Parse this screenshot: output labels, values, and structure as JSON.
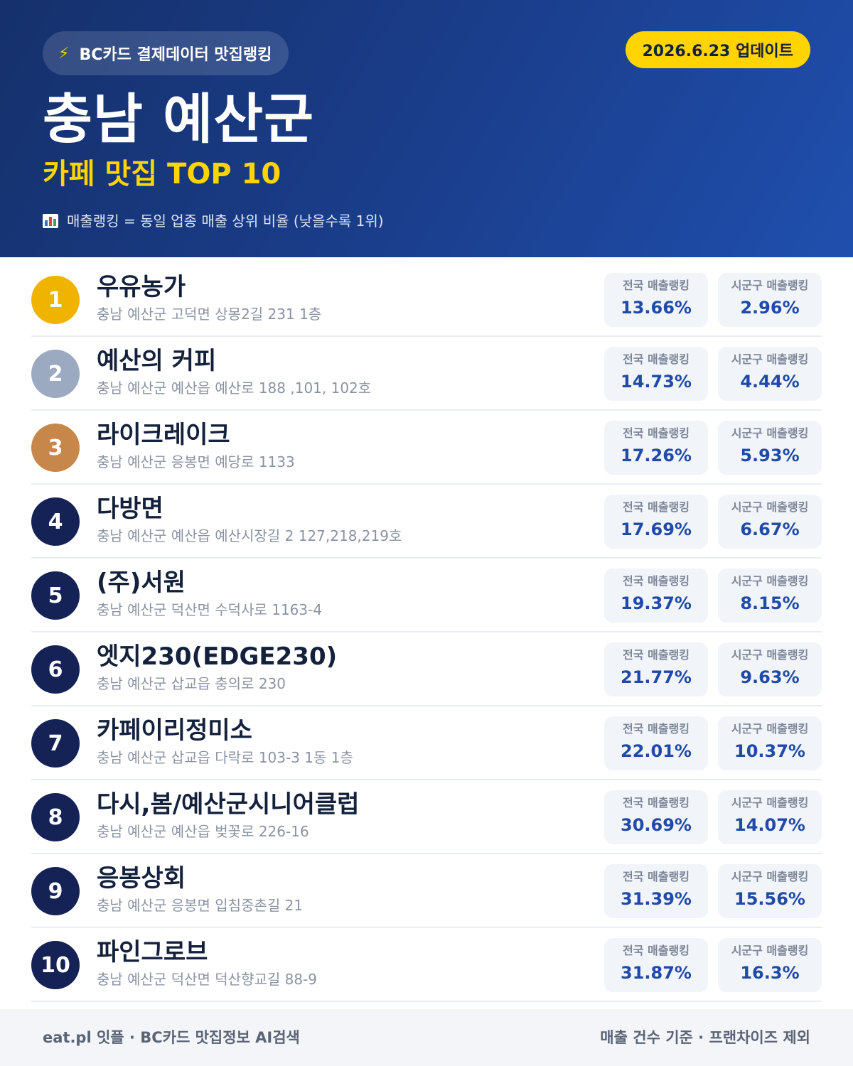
{
  "header": {
    "brand_pill": "BC카드 결제데이터 맛집랭킹",
    "brand_icon": "lightning-icon",
    "update_label": "2026.6.23 업데이트",
    "region": "충남 예산군",
    "subtitle": "카페 맛집 TOP 10",
    "legend_icon": "bar-chart-icon",
    "legend_text": "매출랭킹 = 동일 업종 매출 상위 비율 (낮을수록 1위)"
  },
  "labels": {
    "national": "전국 매출랭킹",
    "local": "시군구 매출랭킹"
  },
  "items": [
    {
      "rank": "1",
      "name": "우유농가",
      "address": "충남 예산군 고덕면 상몽2길 231 1층",
      "national": "13.66%",
      "local": "2.96%"
    },
    {
      "rank": "2",
      "name": "예산의 커피",
      "address": "충남 예산군 예산읍 예산로 188 ,101, 102호",
      "national": "14.73%",
      "local": "4.44%"
    },
    {
      "rank": "3",
      "name": "라이크레이크",
      "address": "충남 예산군 응봉면 예당로 1133",
      "national": "17.26%",
      "local": "5.93%"
    },
    {
      "rank": "4",
      "name": "다방면",
      "address": "충남 예산군 예산읍 예산시장길 2 127,218,219호",
      "national": "17.69%",
      "local": "6.67%"
    },
    {
      "rank": "5",
      "name": "(주)서원",
      "address": "충남 예산군 덕산면 수덕사로 1163-4",
      "national": "19.37%",
      "local": "8.15%"
    },
    {
      "rank": "6",
      "name": "엣지230(EDGE230)",
      "address": "충남 예산군 삽교읍 충의로 230",
      "national": "21.77%",
      "local": "9.63%"
    },
    {
      "rank": "7",
      "name": "카페이리정미소",
      "address": "충남 예산군 삽교읍 다락로 103-3 1동 1층",
      "national": "22.01%",
      "local": "10.37%"
    },
    {
      "rank": "8",
      "name": "다시,봄/예산군시니어클럽",
      "address": "충남 예산군 예산읍 벚꽃로 226-16",
      "national": "30.69%",
      "local": "14.07%"
    },
    {
      "rank": "9",
      "name": "응봉상회",
      "address": "충남 예산군 응봉면 입침중촌길 21",
      "national": "31.39%",
      "local": "15.56%"
    },
    {
      "rank": "10",
      "name": "파인그로브",
      "address": "충남 예산군 덕산면 덕산향교길 88-9",
      "national": "31.87%",
      "local": "16.3%"
    }
  ],
  "footer": {
    "left": "eat.pl 잇플 · BC카드 맛집정보 AI검색",
    "right": "매출 건수 기준 · 프랜차이즈 제외"
  },
  "colors": {
    "header_dark": "#15306b",
    "header_light": "#1f4fae",
    "accent_yellow": "#ffd400",
    "gold": "#f0b400",
    "silver": "#9ba9c1",
    "bronze": "#c8874a",
    "navy_badge": "#142255",
    "value_blue": "#1f4aa8"
  }
}
